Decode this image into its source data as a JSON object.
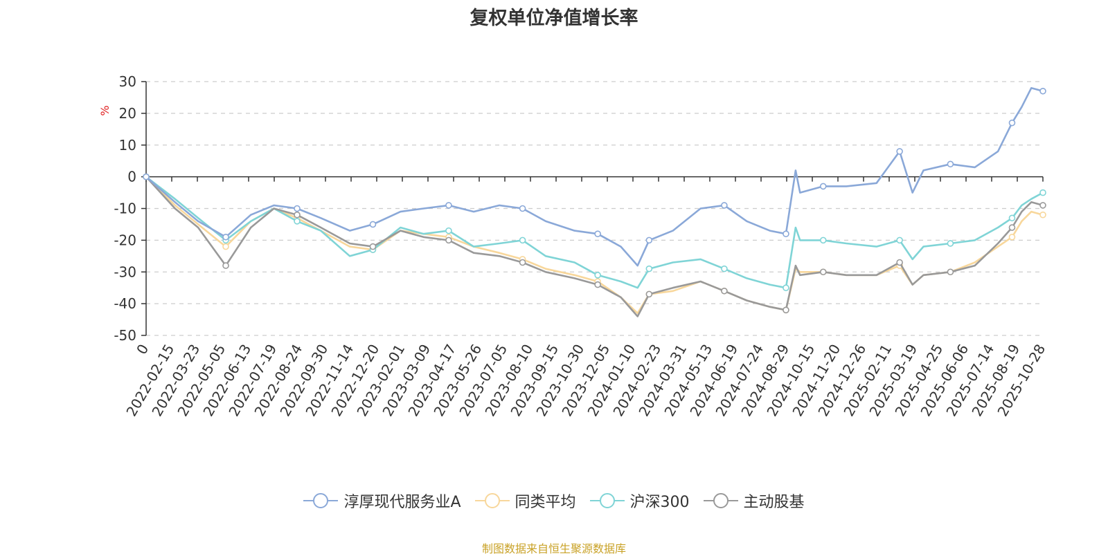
{
  "colors": {
    "fund": "#8aa8d8",
    "peer": "#f8d79b",
    "hs300": "#7fd4d6",
    "active": "#999999",
    "unit_label": "#e02020",
    "source_note": "#c9a227"
  },
  "source_note": "制图数据来自恒生聚源数据库",
  "chart_data": {
    "type": "line",
    "title": "复权单位净值增长率",
    "ylabel": "%",
    "ylim": [
      -50,
      30
    ],
    "yticks": [
      30,
      20,
      10,
      0,
      -10,
      -20,
      -30,
      -40,
      -50
    ],
    "grid": true,
    "legend_position": "bottom",
    "x_tick_labels": [
      "0",
      "2022-02-15",
      "2022-03-23",
      "2022-05-05",
      "2022-06-13",
      "2022-07-19",
      "2022-08-24",
      "2022-09-30",
      "2022-11-14",
      "2022-12-20",
      "2023-02-01",
      "2023-03-09",
      "2023-04-17",
      "2023-05-26",
      "2023-07-05",
      "2023-08-10",
      "2023-09-15",
      "2023-10-30",
      "2023-12-05",
      "2024-01-10",
      "2024-02-23",
      "2024-03-31",
      "2024-05-13",
      "2024-06-19",
      "2024-07-24",
      "2024-08-29",
      "2024-10-15",
      "2024-11-20",
      "2024-12-26",
      "2025-02-11",
      "2025-03-19",
      "2025-04-25",
      "2025-06-06",
      "2025-07-14",
      "2025-08-19",
      "2025-10-28"
    ],
    "x": [
      "0",
      "2022-02-15",
      "2022-03-23",
      "2022-05-05",
      "2022-06-13",
      "2022-07-19",
      "2022-08-24",
      "2022-09-30",
      "2022-11-14",
      "2022-12-20",
      "2023-02-01",
      "2023-03-09",
      "2023-04-17",
      "2023-05-26",
      "2023-07-05",
      "2023-08-10",
      "2023-09-15",
      "2023-10-30",
      "2023-12-05",
      "2024-01-10",
      "2024-02-05",
      "2024-02-23",
      "2024-03-31",
      "2024-05-13",
      "2024-06-19",
      "2024-07-24",
      "2024-08-29",
      "2024-09-23",
      "2024-10-08",
      "2024-10-15",
      "2024-11-20",
      "2024-12-26",
      "2025-02-11",
      "2025-03-19",
      "2025-04-08",
      "2025-04-25",
      "2025-06-06",
      "2025-07-14",
      "2025-08-19",
      "2025-09-10",
      "2025-09-25",
      "2025-10-10",
      "2025-10-28"
    ],
    "series": [
      {
        "name": "淳厚现代服务业A",
        "color_key": "fund",
        "values": [
          0,
          -8,
          -14,
          -19,
          -12,
          -9,
          -10,
          -13,
          -17,
          -15,
          -11,
          -10,
          -9,
          -11,
          -9,
          -10,
          -14,
          -17,
          -18,
          -22,
          -28,
          -20,
          -17,
          -10,
          -9,
          -14,
          -17,
          -18,
          2,
          -5,
          -3,
          -3,
          -2,
          8,
          -5,
          2,
          4,
          3,
          8,
          17,
          22,
          28,
          27
        ]
      },
      {
        "name": "同类平均",
        "color_key": "peer",
        "values": [
          0,
          -9,
          -15,
          -22,
          -14,
          -10,
          -13,
          -17,
          -22,
          -23,
          -17,
          -18,
          -19,
          -22,
          -24,
          -26,
          -29,
          -31,
          -33,
          -38,
          -43,
          -37,
          -36,
          -33,
          -36,
          -39,
          -41,
          -42,
          -29,
          -30,
          -30,
          -31,
          -31,
          -28,
          -34,
          -31,
          -30,
          -27,
          -22,
          -19,
          -14,
          -11,
          -12
        ]
      },
      {
        "name": "沪深300",
        "color_key": "hs300",
        "values": [
          0,
          -7,
          -13,
          -20,
          -14,
          -10,
          -14,
          -17,
          -25,
          -23,
          -16,
          -18,
          -17,
          -22,
          -21,
          -20,
          -25,
          -27,
          -31,
          -33,
          -35,
          -29,
          -27,
          -26,
          -29,
          -32,
          -34,
          -35,
          -16,
          -20,
          -20,
          -21,
          -22,
          -20,
          -26,
          -22,
          -21,
          -20,
          -16,
          -13,
          -9,
          -7,
          -5
        ]
      },
      {
        "name": "主动股基",
        "color_key": "active",
        "values": [
          0,
          -10,
          -16,
          -28,
          -16,
          -10,
          -12,
          -16,
          -21,
          -22,
          -17,
          -19,
          -20,
          -24,
          -25,
          -27,
          -30,
          -32,
          -34,
          -38,
          -44,
          -37,
          -35,
          -33,
          -36,
          -39,
          -41,
          -42,
          -28,
          -31,
          -30,
          -31,
          -31,
          -27,
          -34,
          -31,
          -30,
          -28,
          -21,
          -16,
          -11,
          -8,
          -9
        ]
      }
    ]
  }
}
